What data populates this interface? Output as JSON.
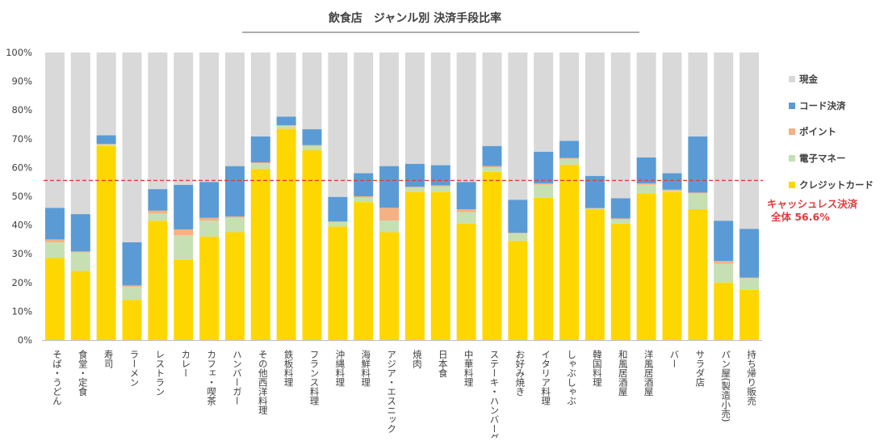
{
  "chart_data": {
    "type": "bar",
    "stacked": true,
    "percent_stacked": true,
    "title": "飲食店　ジャンル別 決済手段比率",
    "categories": [
      "そば・うどん",
      "食堂・定食",
      "寿司",
      "ラーメン",
      "レストラン",
      "カレー",
      "カフェ・喫茶",
      "ハンバーガー",
      "その他西洋料理",
      "鉄板料理",
      "フランス料理",
      "沖縄料理",
      "海鮮料理",
      "アジア・エスニック",
      "焼肉",
      "日本食",
      "中華料理",
      "ステーキ・ハンバーグ",
      "お好み焼き",
      "イタリア料理",
      "しゃぶしゃぶ",
      "韓国料理",
      "和風居酒屋",
      "洋風居酒屋",
      "バー",
      "サラダ店",
      "パン屋(製造小売)",
      "持ち帰り販売"
    ],
    "series": [
      {
        "name": "クレジットカード",
        "color": "#FFD700",
        "values": [
          28.5,
          24.0,
          67.5,
          14.0,
          41.5,
          28.0,
          36.0,
          37.5,
          59.5,
          73.5,
          66.0,
          39.5,
          48.0,
          37.5,
          51.5,
          51.5,
          40.5,
          58.5,
          34.5,
          49.5,
          61.0,
          45.5,
          40.5,
          51.0,
          51.5,
          45.5,
          20.0,
          17.5
        ]
      },
      {
        "name": "電子マネー",
        "color": "#C6E0B4",
        "values": [
          5.5,
          6.5,
          0.5,
          4.5,
          2.5,
          8.5,
          5.5,
          5.0,
          2.0,
          1.0,
          1.5,
          1.5,
          1.5,
          4.0,
          1.5,
          2.0,
          4.0,
          1.5,
          2.5,
          4.5,
          2.0,
          0.3,
          1.5,
          3.0,
          0.5,
          5.5,
          6.5,
          4.0
        ]
      },
      {
        "name": "ポイント",
        "color": "#F4B183",
        "values": [
          1.0,
          0.3,
          0.2,
          0.5,
          1.0,
          2.0,
          1.0,
          0.5,
          0.3,
          0.2,
          0.3,
          0.3,
          0.5,
          4.5,
          0.3,
          0.3,
          1.0,
          0.5,
          0.3,
          0.5,
          0.3,
          0.1,
          0.3,
          0.5,
          0.3,
          0.3,
          1.0,
          0.2
        ]
      },
      {
        "name": "コード決済",
        "color": "#5B9BD5",
        "values": [
          11.0,
          13.0,
          3.0,
          15.0,
          7.5,
          15.5,
          12.5,
          17.5,
          9.0,
          3.0,
          5.5,
          8.5,
          8.0,
          14.5,
          8.0,
          7.0,
          9.5,
          7.0,
          11.5,
          11.0,
          6.0,
          11.2,
          7.0,
          9.0,
          5.7,
          19.5,
          14.0,
          17.0
        ]
      },
      {
        "name": "現金",
        "color": "#D9D9D9",
        "values": [
          54.0,
          56.2,
          28.8,
          66.0,
          47.5,
          46.0,
          45.0,
          39.5,
          29.2,
          22.3,
          26.7,
          50.2,
          42.0,
          39.5,
          38.7,
          39.2,
          45.0,
          32.5,
          51.2,
          34.5,
          30.7,
          42.9,
          50.7,
          36.5,
          42.0,
          29.2,
          58.5,
          61.3
        ]
      }
    ],
    "y_ticks": [
      "0%",
      "10%",
      "20%",
      "30%",
      "40%",
      "50%",
      "60%",
      "70%",
      "80%",
      "90%",
      "100%"
    ],
    "ylim": [
      0,
      100
    ],
    "legend_position": "right",
    "legend_order": [
      "現金",
      "コード決済",
      "ポイント",
      "電子マネー",
      "クレジットカード"
    ],
    "reference_line": {
      "value": 55.5,
      "color": "#E03C3C",
      "label_line1": "キャッシュレス決済",
      "label_line2": "全体 56.6%"
    }
  }
}
